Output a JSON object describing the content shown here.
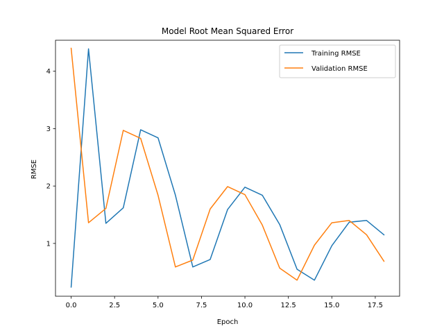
{
  "chart_data": {
    "type": "line",
    "title": "Model Root Mean Squared Error",
    "xlabel": "Epoch",
    "ylabel": "RMSE",
    "xlim": [
      -0.9,
      18.9
    ],
    "ylim": [
      0.08,
      4.54
    ],
    "xticks": [
      0,
      2.5,
      5,
      7.5,
      10,
      12.5,
      15,
      17.5
    ],
    "xtick_labels": [
      "0.0",
      "2.5",
      "5.0",
      "7.5",
      "10.0",
      "12.5",
      "15.0",
      "17.5"
    ],
    "yticks": [
      1,
      2,
      3,
      4
    ],
    "ytick_labels": [
      "1",
      "2",
      "3",
      "4"
    ],
    "grid": false,
    "legend_position": "top-right",
    "x": [
      0,
      1,
      2,
      3,
      4,
      5,
      6,
      7,
      8,
      9,
      10,
      11,
      12,
      13,
      14,
      15,
      16,
      17,
      18
    ],
    "series": [
      {
        "name": "Training RMSE",
        "color": "#1f77b4",
        "values": [
          0.24,
          4.39,
          1.35,
          1.62,
          2.98,
          2.84,
          1.84,
          0.59,
          0.72,
          1.59,
          1.98,
          1.84,
          1.33,
          0.55,
          0.36,
          0.96,
          1.37,
          1.4,
          1.15
        ]
      },
      {
        "name": "Validation RMSE",
        "color": "#ff7f0e",
        "values": [
          4.4,
          1.36,
          1.61,
          2.97,
          2.83,
          1.84,
          0.59,
          0.71,
          1.6,
          1.99,
          1.85,
          1.32,
          0.57,
          0.36,
          0.97,
          1.36,
          1.4,
          1.15,
          0.69
        ]
      }
    ]
  }
}
